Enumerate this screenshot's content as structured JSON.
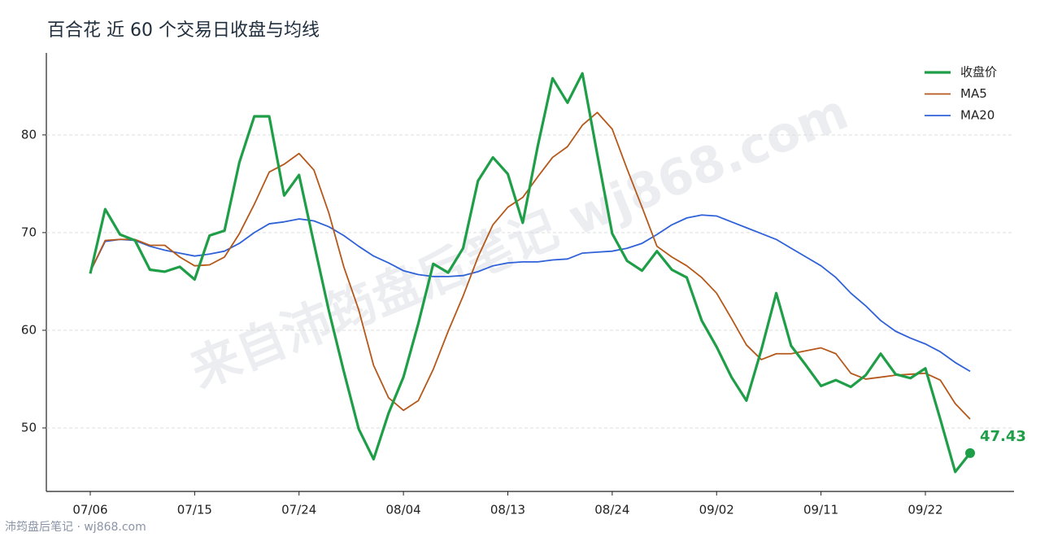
{
  "chart_data": {
    "type": "line",
    "title": "百合花 近 60 个交易日收盘与均线",
    "watermark": "来自沛筠盘后笔记 wj868.com",
    "footer": "沛筠盘后笔记 · wj868.com",
    "categories": [
      "07/06",
      null,
      null,
      null,
      null,
      null,
      null,
      "07/15",
      null,
      null,
      null,
      null,
      null,
      null,
      "07/24",
      null,
      null,
      null,
      null,
      null,
      null,
      "08/04",
      null,
      null,
      null,
      null,
      null,
      null,
      "08/13",
      null,
      null,
      null,
      null,
      null,
      null,
      "08/24",
      null,
      null,
      null,
      null,
      null,
      null,
      "09/02",
      null,
      null,
      null,
      null,
      null,
      null,
      "09/11",
      null,
      null,
      null,
      null,
      null,
      null,
      "09/22",
      null,
      null,
      null
    ],
    "series": [
      {
        "name": "收盘价",
        "color": "#1f9e48",
        "width": 3.2,
        "values": [
          65.8,
          72.4,
          69.8,
          69.2,
          66.2,
          66.0,
          66.5,
          65.2,
          69.7,
          70.2,
          77.2,
          81.9,
          81.9,
          73.8,
          75.9,
          68.9,
          62.0,
          55.8,
          49.9,
          46.8,
          51.5,
          55.2,
          60.7,
          66.8,
          65.9,
          68.4,
          75.3,
          77.7,
          76.0,
          71.0,
          78.8,
          85.8,
          83.3,
          86.3,
          78.0,
          69.9,
          67.1,
          66.1,
          68.1,
          66.2,
          65.4,
          61.0,
          58.3,
          55.2,
          52.8,
          58.0,
          63.8,
          58.4,
          56.4,
          54.3,
          54.9,
          54.2,
          55.4,
          57.6,
          55.5,
          55.1,
          56.1,
          50.9,
          45.5,
          47.43
        ]
      },
      {
        "name": "MA5",
        "color": "#b5581a",
        "width": 1.8,
        "values": [
          66.0,
          69.2,
          69.3,
          69.3,
          68.7,
          68.7,
          67.5,
          66.6,
          66.7,
          67.5,
          69.9,
          72.9,
          76.2,
          77.0,
          78.1,
          76.4,
          72.0,
          66.5,
          62.1,
          56.4,
          53.1,
          51.8,
          52.8,
          56.0,
          59.9,
          63.5,
          67.5,
          70.8,
          72.6,
          73.6,
          75.7,
          77.7,
          78.8,
          81.0,
          82.3,
          80.6,
          76.5,
          72.6,
          68.6,
          67.5,
          66.6,
          65.4,
          63.8,
          61.2,
          58.5,
          57.0,
          57.6,
          57.6,
          57.9,
          58.2,
          57.6,
          55.6,
          55.0,
          55.2,
          55.4,
          55.5,
          55.6,
          54.9,
          52.5,
          50.9
        ]
      },
      {
        "name": "MA20",
        "color": "#2f62d8",
        "width": 1.8,
        "values": [
          66.0,
          69.1,
          69.3,
          69.2,
          68.6,
          68.2,
          67.9,
          67.6,
          67.8,
          68.1,
          68.9,
          70.0,
          70.9,
          71.1,
          71.4,
          71.2,
          70.6,
          69.7,
          68.6,
          67.6,
          66.9,
          66.1,
          65.7,
          65.5,
          65.5,
          65.6,
          66.0,
          66.6,
          66.9,
          67.0,
          67.0,
          67.2,
          67.3,
          67.9,
          68.0,
          68.1,
          68.4,
          68.9,
          69.8,
          70.8,
          71.5,
          71.8,
          71.7,
          71.1,
          70.5,
          69.9,
          69.3,
          68.4,
          67.5,
          66.6,
          65.4,
          63.8,
          62.5,
          61.0,
          59.9,
          59.2,
          58.6,
          57.8,
          56.7,
          55.8
        ]
      }
    ],
    "ylim": [
      43.5,
      88.4
    ],
    "yticks": [
      50,
      60,
      70,
      80
    ],
    "grid": true,
    "legend": "top-right"
  }
}
